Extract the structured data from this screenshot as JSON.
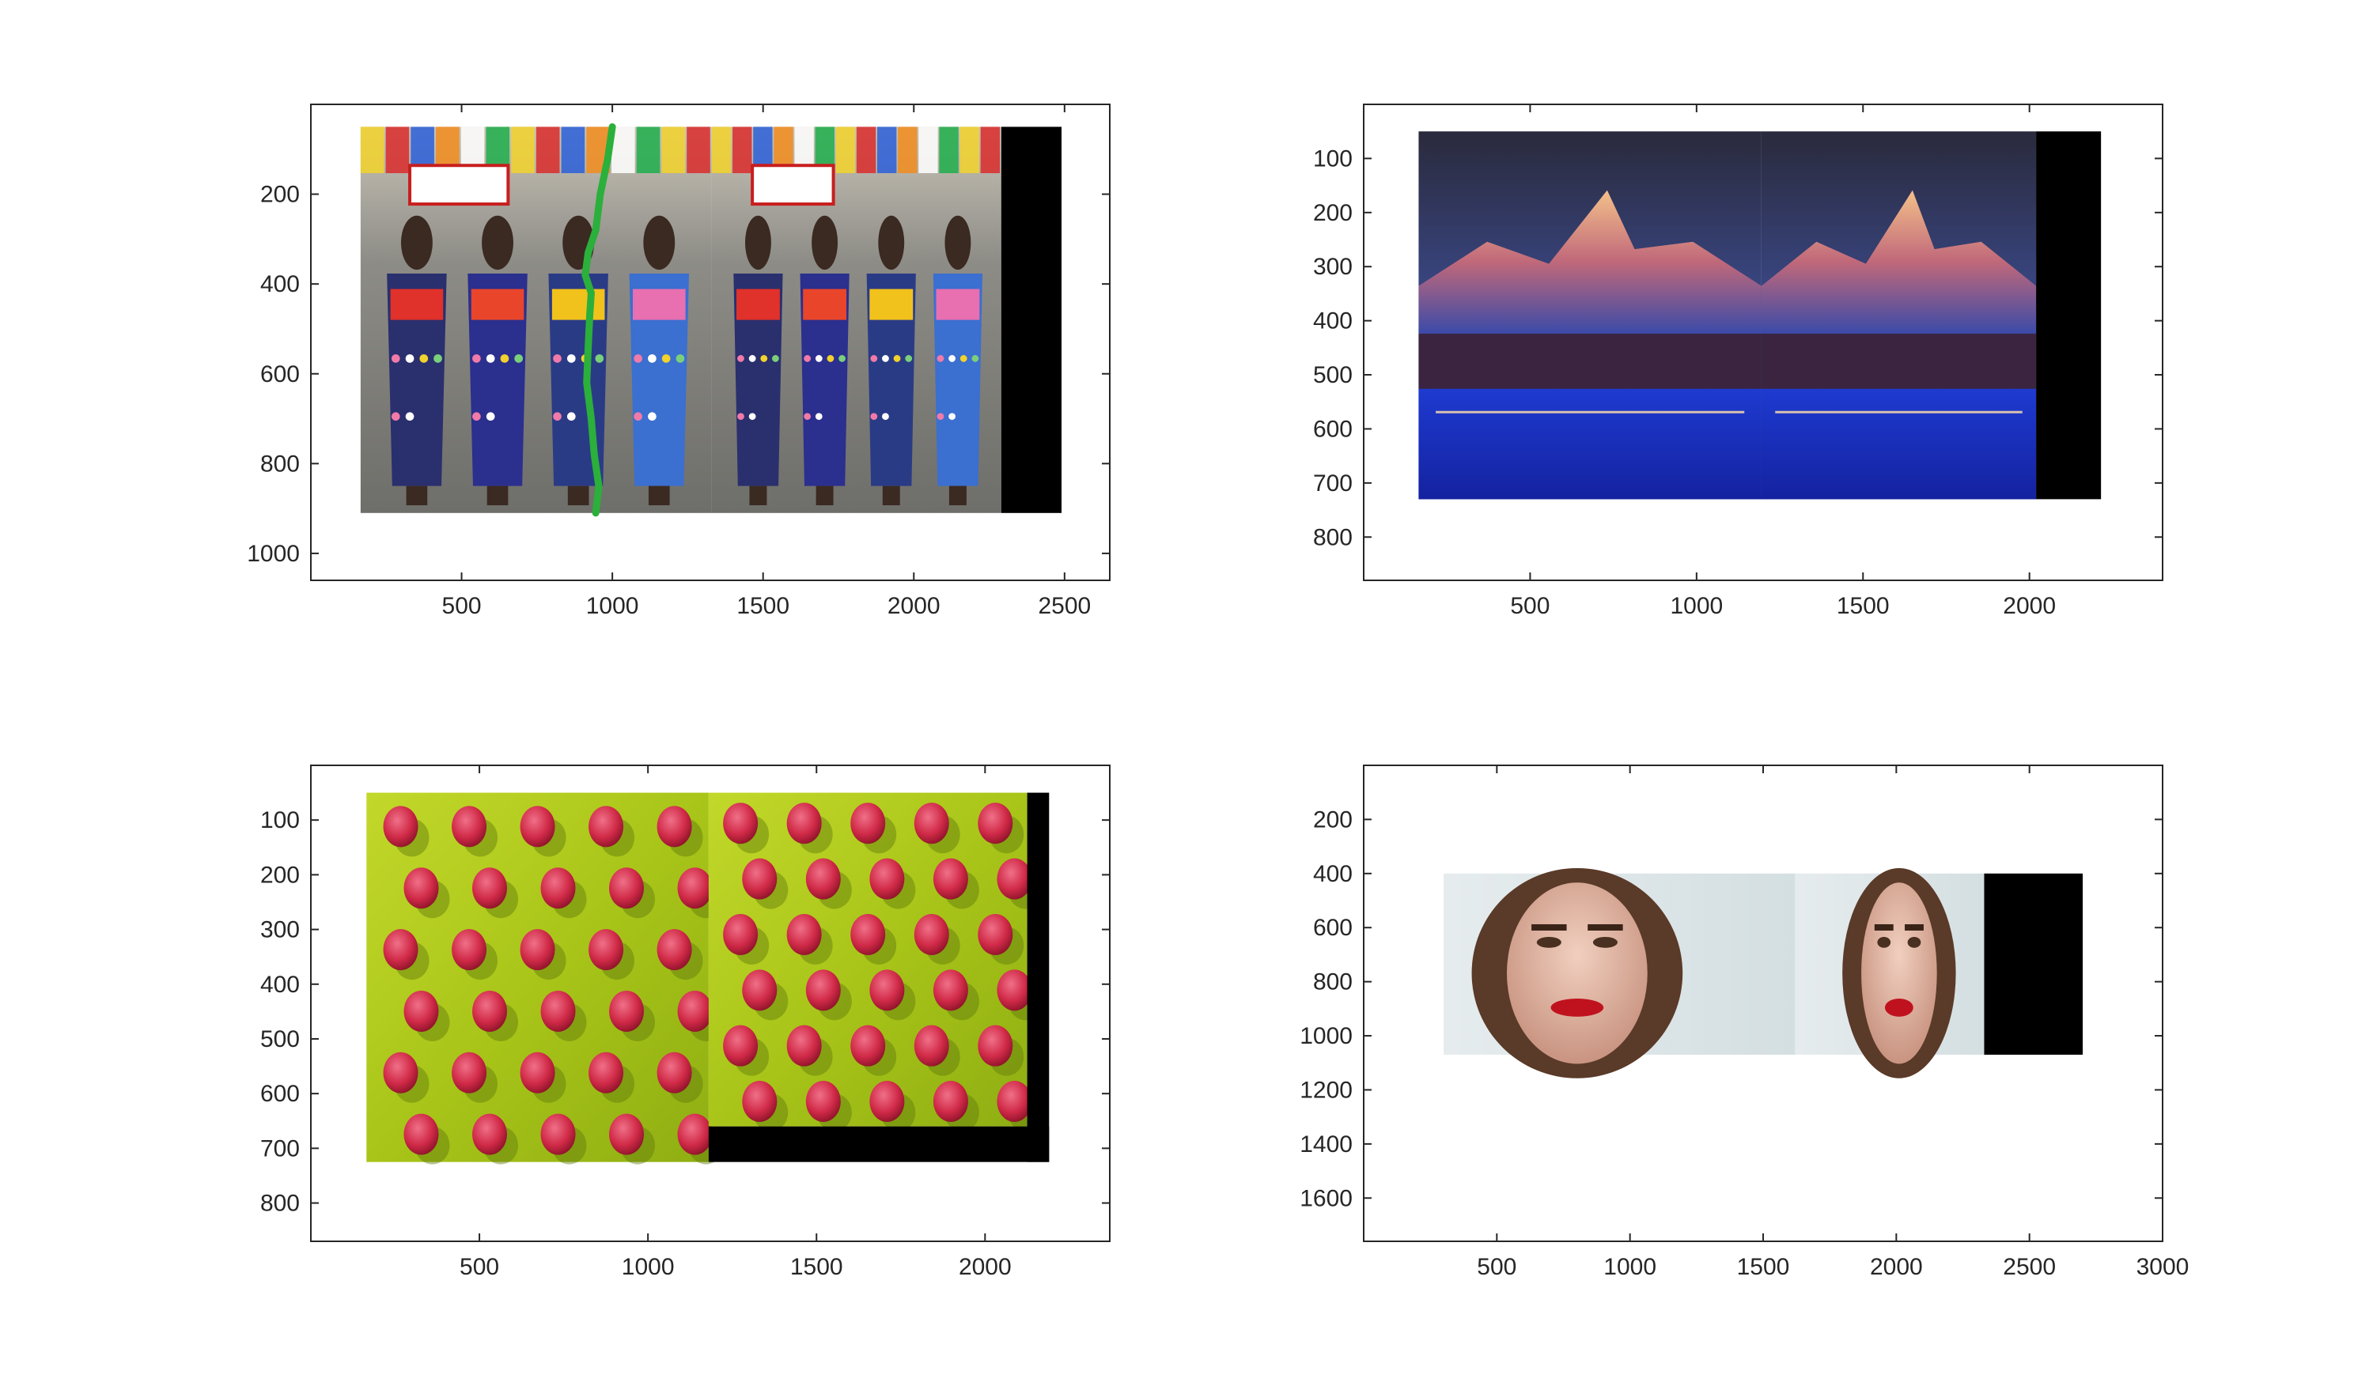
{
  "chart_data": [
    {
      "type": "image",
      "content": "kimono-street-stitch",
      "xlim": [
        0,
        2650
      ],
      "ylim": [
        1060,
        0
      ],
      "xticks": [
        500,
        1000,
        1500,
        2000,
        2500
      ],
      "xtick_labels": [
        "500",
        "1000",
        "1500",
        "2000",
        "2500"
      ],
      "yticks": [
        200,
        400,
        600,
        800,
        1000
      ],
      "ytick_labels": [
        "200",
        "400",
        "600",
        "800",
        "1000"
      ],
      "images": [
        {
          "name": "left-image",
          "x": [
            165,
            1330
          ],
          "y": [
            50,
            910
          ]
        },
        {
          "name": "right-image",
          "x": [
            1330,
            2290
          ],
          "y": [
            50,
            910
          ]
        },
        {
          "name": "black-fill",
          "x": [
            2290,
            2490
          ],
          "y": [
            50,
            910
          ]
        }
      ],
      "seam": {
        "color": "#2bb03b",
        "x": [
          1000,
          985,
          960,
          945,
          920,
          910,
          930,
          925,
          920,
          915,
          930,
          940,
          955,
          945
        ],
        "y": [
          50,
          120,
          200,
          280,
          330,
          380,
          420,
          470,
          540,
          620,
          700,
          780,
          850,
          910
        ]
      }
    },
    {
      "type": "image",
      "content": "mountain-stitch",
      "xlim": [
        0,
        2400
      ],
      "ylim": [
        880,
        0
      ],
      "xticks": [
        500,
        1000,
        1500,
        2000
      ],
      "xtick_labels": [
        "500",
        "1000",
        "1500",
        "2000"
      ],
      "yticks": [
        100,
        200,
        300,
        400,
        500,
        600,
        700,
        800
      ],
      "ytick_labels": [
        "100",
        "200",
        "300",
        "400",
        "500",
        "600",
        "700",
        "800"
      ],
      "images": [
        {
          "name": "left-image",
          "x": [
            165,
            1195
          ],
          "y": [
            50,
            730
          ]
        },
        {
          "name": "right-image",
          "x": [
            1195,
            2020
          ],
          "y": [
            50,
            730
          ]
        },
        {
          "name": "black-fill",
          "x": [
            2020,
            2215
          ],
          "y": [
            50,
            730
          ]
        }
      ]
    },
    {
      "type": "image",
      "content": "raspberry-stitch",
      "xlim": [
        0,
        2370
      ],
      "ylim": [
        870,
        0
      ],
      "xticks": [
        500,
        1000,
        1500,
        2000
      ],
      "xtick_labels": [
        "500",
        "1000",
        "1500",
        "2000"
      ],
      "yticks": [
        100,
        200,
        300,
        400,
        500,
        600,
        700,
        800
      ],
      "ytick_labels": [
        "100",
        "200",
        "300",
        "400",
        "500",
        "600",
        "700",
        "800"
      ],
      "images": [
        {
          "name": "left-image",
          "x": [
            165,
            1180
          ],
          "y": [
            50,
            725
          ]
        },
        {
          "name": "right-image",
          "x": [
            1180,
            2125
          ],
          "y": [
            50,
            660
          ]
        },
        {
          "name": "black-fill-right",
          "x": [
            2125,
            2190
          ],
          "y": [
            50,
            725
          ]
        },
        {
          "name": "black-fill-bottom",
          "x": [
            1180,
            2190
          ],
          "y": [
            660,
            725
          ]
        }
      ]
    },
    {
      "type": "image",
      "content": "portrait-stitch",
      "xlim": [
        0,
        3000
      ],
      "ylim": [
        1760,
        0
      ],
      "xticks": [
        500,
        1000,
        1500,
        2000,
        2500,
        3000
      ],
      "xtick_labels": [
        "500",
        "1000",
        "1500",
        "2000",
        "2500",
        "3000"
      ],
      "yticks": [
        200,
        400,
        600,
        800,
        1000,
        1200,
        1400,
        1600
      ],
      "ytick_labels": [
        "200",
        "400",
        "600",
        "800",
        "1000",
        "1200",
        "1400",
        "1600"
      ],
      "images": [
        {
          "name": "left-image",
          "x": [
            300,
            1620
          ],
          "y": [
            400,
            1070
          ]
        },
        {
          "name": "right-image",
          "x": [
            1620,
            2330
          ],
          "y": [
            400,
            1070
          ]
        },
        {
          "name": "black-fill",
          "x": [
            2330,
            2700
          ],
          "y": [
            400,
            1070
          ]
        }
      ]
    }
  ]
}
